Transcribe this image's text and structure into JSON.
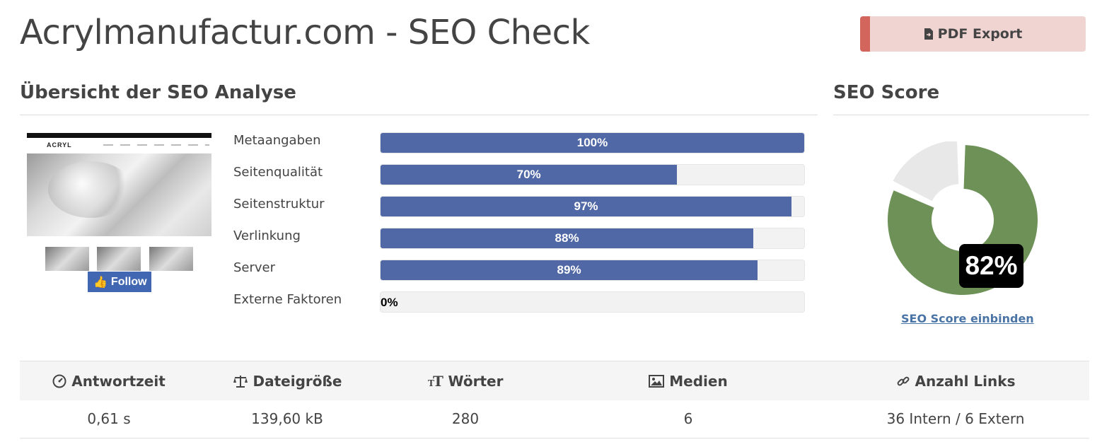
{
  "page": {
    "title": "Acrylmanufactur.com - SEO Check",
    "pdf_export_label": "PDF Export"
  },
  "overview": {
    "heading": "Übersicht der SEO Analyse",
    "thumbnail": {
      "logo_text": "ACRYL",
      "follow_label": "Follow"
    },
    "bars": [
      {
        "label": "Metaangaben",
        "percent": 100,
        "text": "100%"
      },
      {
        "label": "Seitenqualität",
        "percent": 70,
        "text": "70%"
      },
      {
        "label": "Seitenstruktur",
        "percent": 97,
        "text": "97%"
      },
      {
        "label": "Verlinkung",
        "percent": 88,
        "text": "88%"
      },
      {
        "label": "Server",
        "percent": 89,
        "text": "89%"
      },
      {
        "label": "Externe Faktoren",
        "percent": 0,
        "text": "0%"
      }
    ]
  },
  "seo_score": {
    "heading": "SEO Score",
    "value": 82,
    "value_text": "82%",
    "link_text": "SEO Score einbinden",
    "colors": {
      "score": "#6e9158",
      "rest": "#e8e8e8"
    }
  },
  "stats": {
    "headers": [
      {
        "icon": "gauge-icon",
        "label": "Antwortzeit"
      },
      {
        "icon": "scale-icon",
        "label": "Dateigröße"
      },
      {
        "icon": "text-icon",
        "label": "Wörter"
      },
      {
        "icon": "image-icon",
        "label": "Medien"
      },
      {
        "icon": "link-icon",
        "label": "Anzahl Links"
      }
    ],
    "values": [
      "0,61 s",
      "139,60 kB",
      "280",
      "6",
      "36 Intern / 6 Extern"
    ]
  },
  "colors": {
    "bar_fill": "#5068a5",
    "pdf_button_bg": "#f0d4d2",
    "pdf_button_stripe": "#d2665c"
  }
}
